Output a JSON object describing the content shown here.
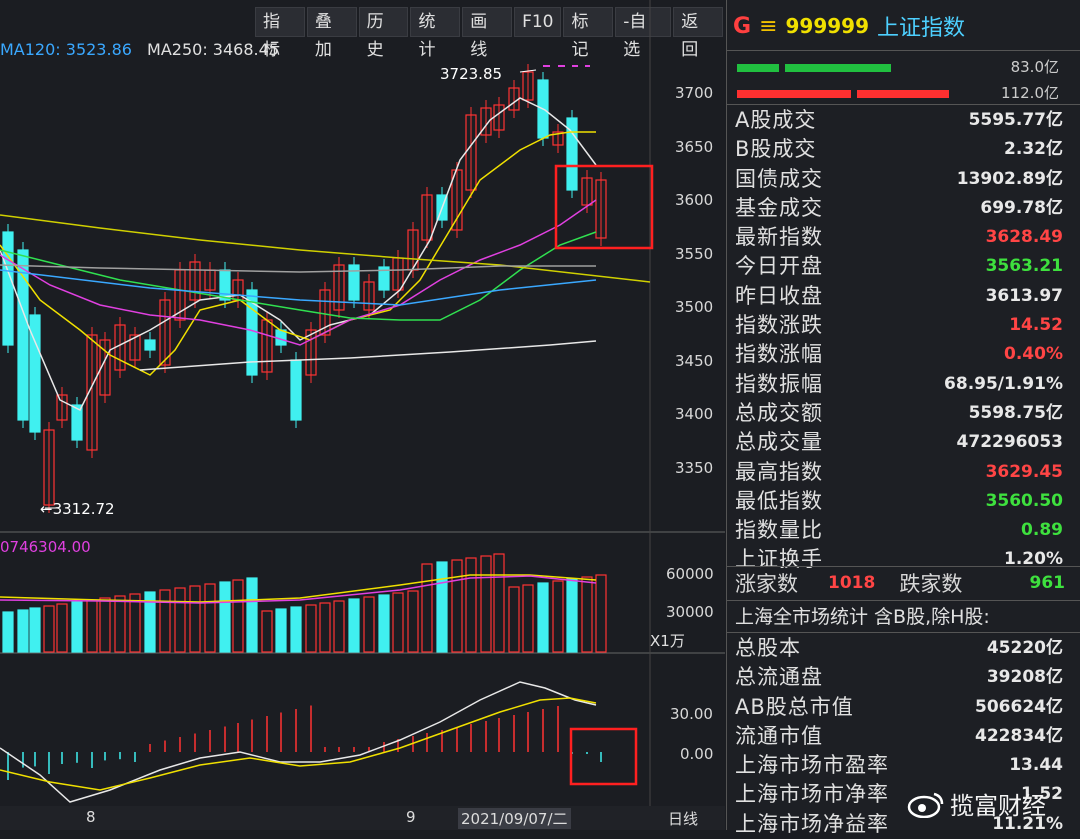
{
  "toolbar": [
    "指标",
    "叠加",
    "历史",
    "统计",
    "画线",
    "F10",
    "标记",
    "-自选",
    "返回"
  ],
  "ma_legend": {
    "ma120": "MA120: 3523.86",
    "ma250": "MA250: 3468.45"
  },
  "annotations": {
    "high": "3723.85",
    "low": "←3312.72"
  },
  "volume_label": "0746304.00",
  "unit": "X1万",
  "price_axis": [
    "3700",
    "3650",
    "3600",
    "3550",
    "3500",
    "3450",
    "3400",
    "3350"
  ],
  "volume_axis": [
    "60000",
    "30000"
  ],
  "macd_axis": [
    "30.00",
    "0.00"
  ],
  "x_axis": {
    "left": "8",
    "mid": "9",
    "date": "2021/09/07/二",
    "period": "日线"
  },
  "header": {
    "g": "G",
    "menu": "≡",
    "code": "999999",
    "name": "上证指数"
  },
  "flow": [
    {
      "amount": "83.0亿",
      "color": "#21c040"
    },
    {
      "amount": "112.0亿",
      "color": "#ff3030"
    }
  ],
  "stats": [
    {
      "k": "A股成交",
      "v": "5595.77亿",
      "c": ""
    },
    {
      "k": "B股成交",
      "v": "2.32亿",
      "c": ""
    },
    {
      "k": "国债成交",
      "v": "13902.89亿",
      "c": ""
    },
    {
      "k": "基金成交",
      "v": "699.78亿",
      "c": ""
    },
    {
      "k": "最新指数",
      "v": "3628.49",
      "c": "red"
    },
    {
      "k": "今日开盘",
      "v": "3563.21",
      "c": "green"
    },
    {
      "k": "昨日收盘",
      "v": "3613.97",
      "c": ""
    },
    {
      "k": "指数涨跌",
      "v": "14.52",
      "c": "red"
    },
    {
      "k": "指数涨幅",
      "v": "0.40%",
      "c": "red"
    },
    {
      "k": "指数振幅",
      "v": "68.95/1.91%",
      "c": ""
    },
    {
      "k": "总成交额",
      "v": "5598.75亿",
      "c": ""
    },
    {
      "k": "总成交量",
      "v": "472296053",
      "c": ""
    },
    {
      "k": "最高指数",
      "v": "3629.45",
      "c": "red"
    },
    {
      "k": "最低指数",
      "v": "3560.50",
      "c": "green"
    },
    {
      "k": "指数量比",
      "v": "0.89",
      "c": "green"
    },
    {
      "k": "上证换手",
      "v": "1.20%",
      "c": ""
    }
  ],
  "updown": {
    "up_label": "涨家数",
    "up": "1018",
    "down_label": "跌家数",
    "down": "961"
  },
  "market_title": "上海全市场统计 含B股,除H股:",
  "market": [
    {
      "k": "总股本",
      "v": "45220亿"
    },
    {
      "k": "总流通盘",
      "v": "39208亿"
    },
    {
      "k": "AB股总市值",
      "v": "506624亿"
    },
    {
      "k": "流通市值",
      "v": "422834亿"
    },
    {
      "k": "上海市场市盈率",
      "v": "13.44"
    },
    {
      "k": "上海市场市净率",
      "v": "1.52"
    },
    {
      "k": "上海市场净益率",
      "v": "11.21%"
    }
  ],
  "watermark": "揽富财经"
}
